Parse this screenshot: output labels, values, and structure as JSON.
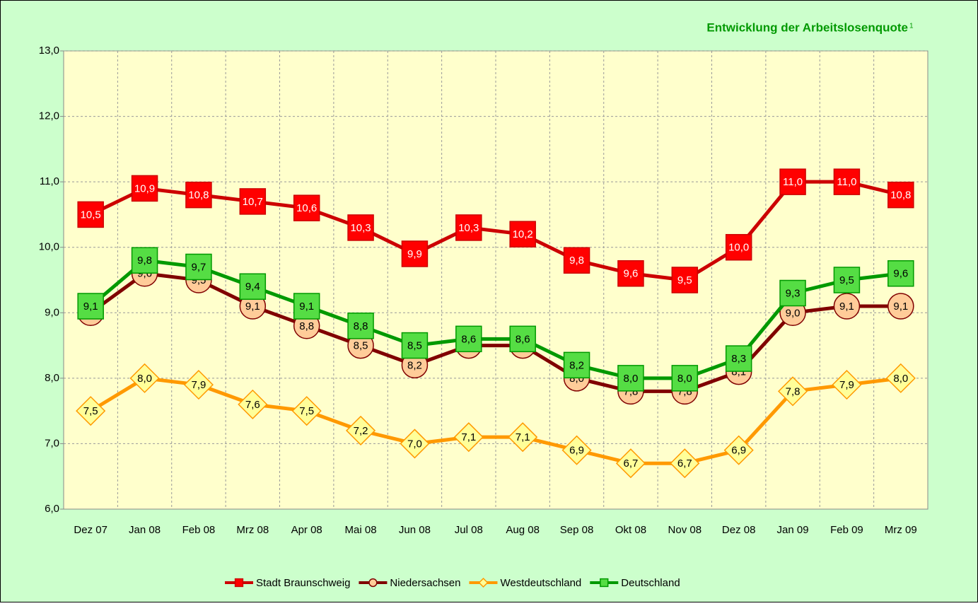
{
  "chart_data": {
    "type": "line",
    "title": "Entwicklung der Arbeitslosenquote",
    "title_note": "1",
    "categories": [
      "Dez 07",
      "Jan 08",
      "Feb 08",
      "Mrz 08",
      "Apr 08",
      "Mai 08",
      "Jun 08",
      "Jul 08",
      "Aug 08",
      "Sep 08",
      "Okt 08",
      "Nov 08",
      "Dez 08",
      "Jan 09",
      "Feb 09",
      "Mrz 09"
    ],
    "ylim": [
      6,
      13
    ],
    "yticks": [
      {
        "value": 6,
        "label": "6,0"
      },
      {
        "value": 7,
        "label": "7,0"
      },
      {
        "value": 8,
        "label": "8,0"
      },
      {
        "value": 9,
        "label": "9,0"
      },
      {
        "value": 10,
        "label": "10,0"
      },
      {
        "value": 11,
        "label": "11,0"
      },
      {
        "value": 12,
        "label": "12,0"
      },
      {
        "value": 13,
        "label": "13,0"
      }
    ],
    "grid": true,
    "legend": "bottom",
    "series": [
      {
        "name": "Westdeutschland",
        "color": "#ff9900",
        "marker": "diamond",
        "marker_color": "#ffff99",
        "values": [
          7.5,
          8.0,
          7.9,
          7.6,
          7.5,
          7.2,
          7.0,
          7.1,
          7.1,
          6.9,
          6.7,
          6.7,
          6.9,
          7.8,
          7.9,
          8.0
        ],
        "value_labels": [
          "7,5",
          "8,0",
          "7,9",
          "7,6",
          "7,5",
          "7,2",
          "7,0",
          "7,1",
          "7,1",
          "6,9",
          "6,7",
          "6,7",
          "6,9",
          "7,8",
          "7,9",
          "8,0"
        ]
      },
      {
        "name": "Niedersachsen",
        "color": "#800000",
        "marker": "circle",
        "marker_color": "#ffcc99",
        "values": [
          9.0,
          9.6,
          9.5,
          9.1,
          8.8,
          8.5,
          8.2,
          8.5,
          8.5,
          8.0,
          7.8,
          7.8,
          8.1,
          9.0,
          9.1,
          9.1
        ],
        "value_labels": [
          null,
          "9,6",
          "9,5",
          "9,1",
          "8,8",
          "8,5",
          "8,2",
          null,
          null,
          "8,0",
          "7,8",
          "7,8",
          "8,1",
          "9,0",
          "9,1",
          "9,1"
        ]
      },
      {
        "name": "Deutschland",
        "color": "#009900",
        "marker": "square",
        "marker_color": "#55dd44",
        "values": [
          9.1,
          9.8,
          9.7,
          9.4,
          9.1,
          8.8,
          8.5,
          8.6,
          8.6,
          8.2,
          8.0,
          8.0,
          8.3,
          9.3,
          9.5,
          9.6
        ],
        "value_labels": [
          "9,1",
          "9,8",
          "9,7",
          "9,4",
          "9,1",
          "8,8",
          "8,5",
          "8,6",
          "8,6",
          "8,2",
          "8,0",
          "8,0",
          "8,3",
          "9,3",
          "9,5",
          "9,6"
        ]
      },
      {
        "name": "Stadt Braunschweig",
        "color": "#cc0000",
        "marker": "square",
        "marker_color": "#ff0000",
        "label_color": "#ffffff",
        "values": [
          10.5,
          10.9,
          10.8,
          10.7,
          10.6,
          10.3,
          9.9,
          10.3,
          10.2,
          9.8,
          9.6,
          9.5,
          10.0,
          11.0,
          11.0,
          10.8
        ],
        "value_labels": [
          "10,5",
          "10,9",
          "10,8",
          "10,7",
          "10,6",
          "10,3",
          "9,9",
          "10,3",
          "10,2",
          "9,8",
          "9,6",
          "9,5",
          "10,0",
          "11,0",
          "11,0",
          "10,8"
        ]
      }
    ],
    "legend_order": [
      3,
      1,
      0,
      2
    ]
  }
}
